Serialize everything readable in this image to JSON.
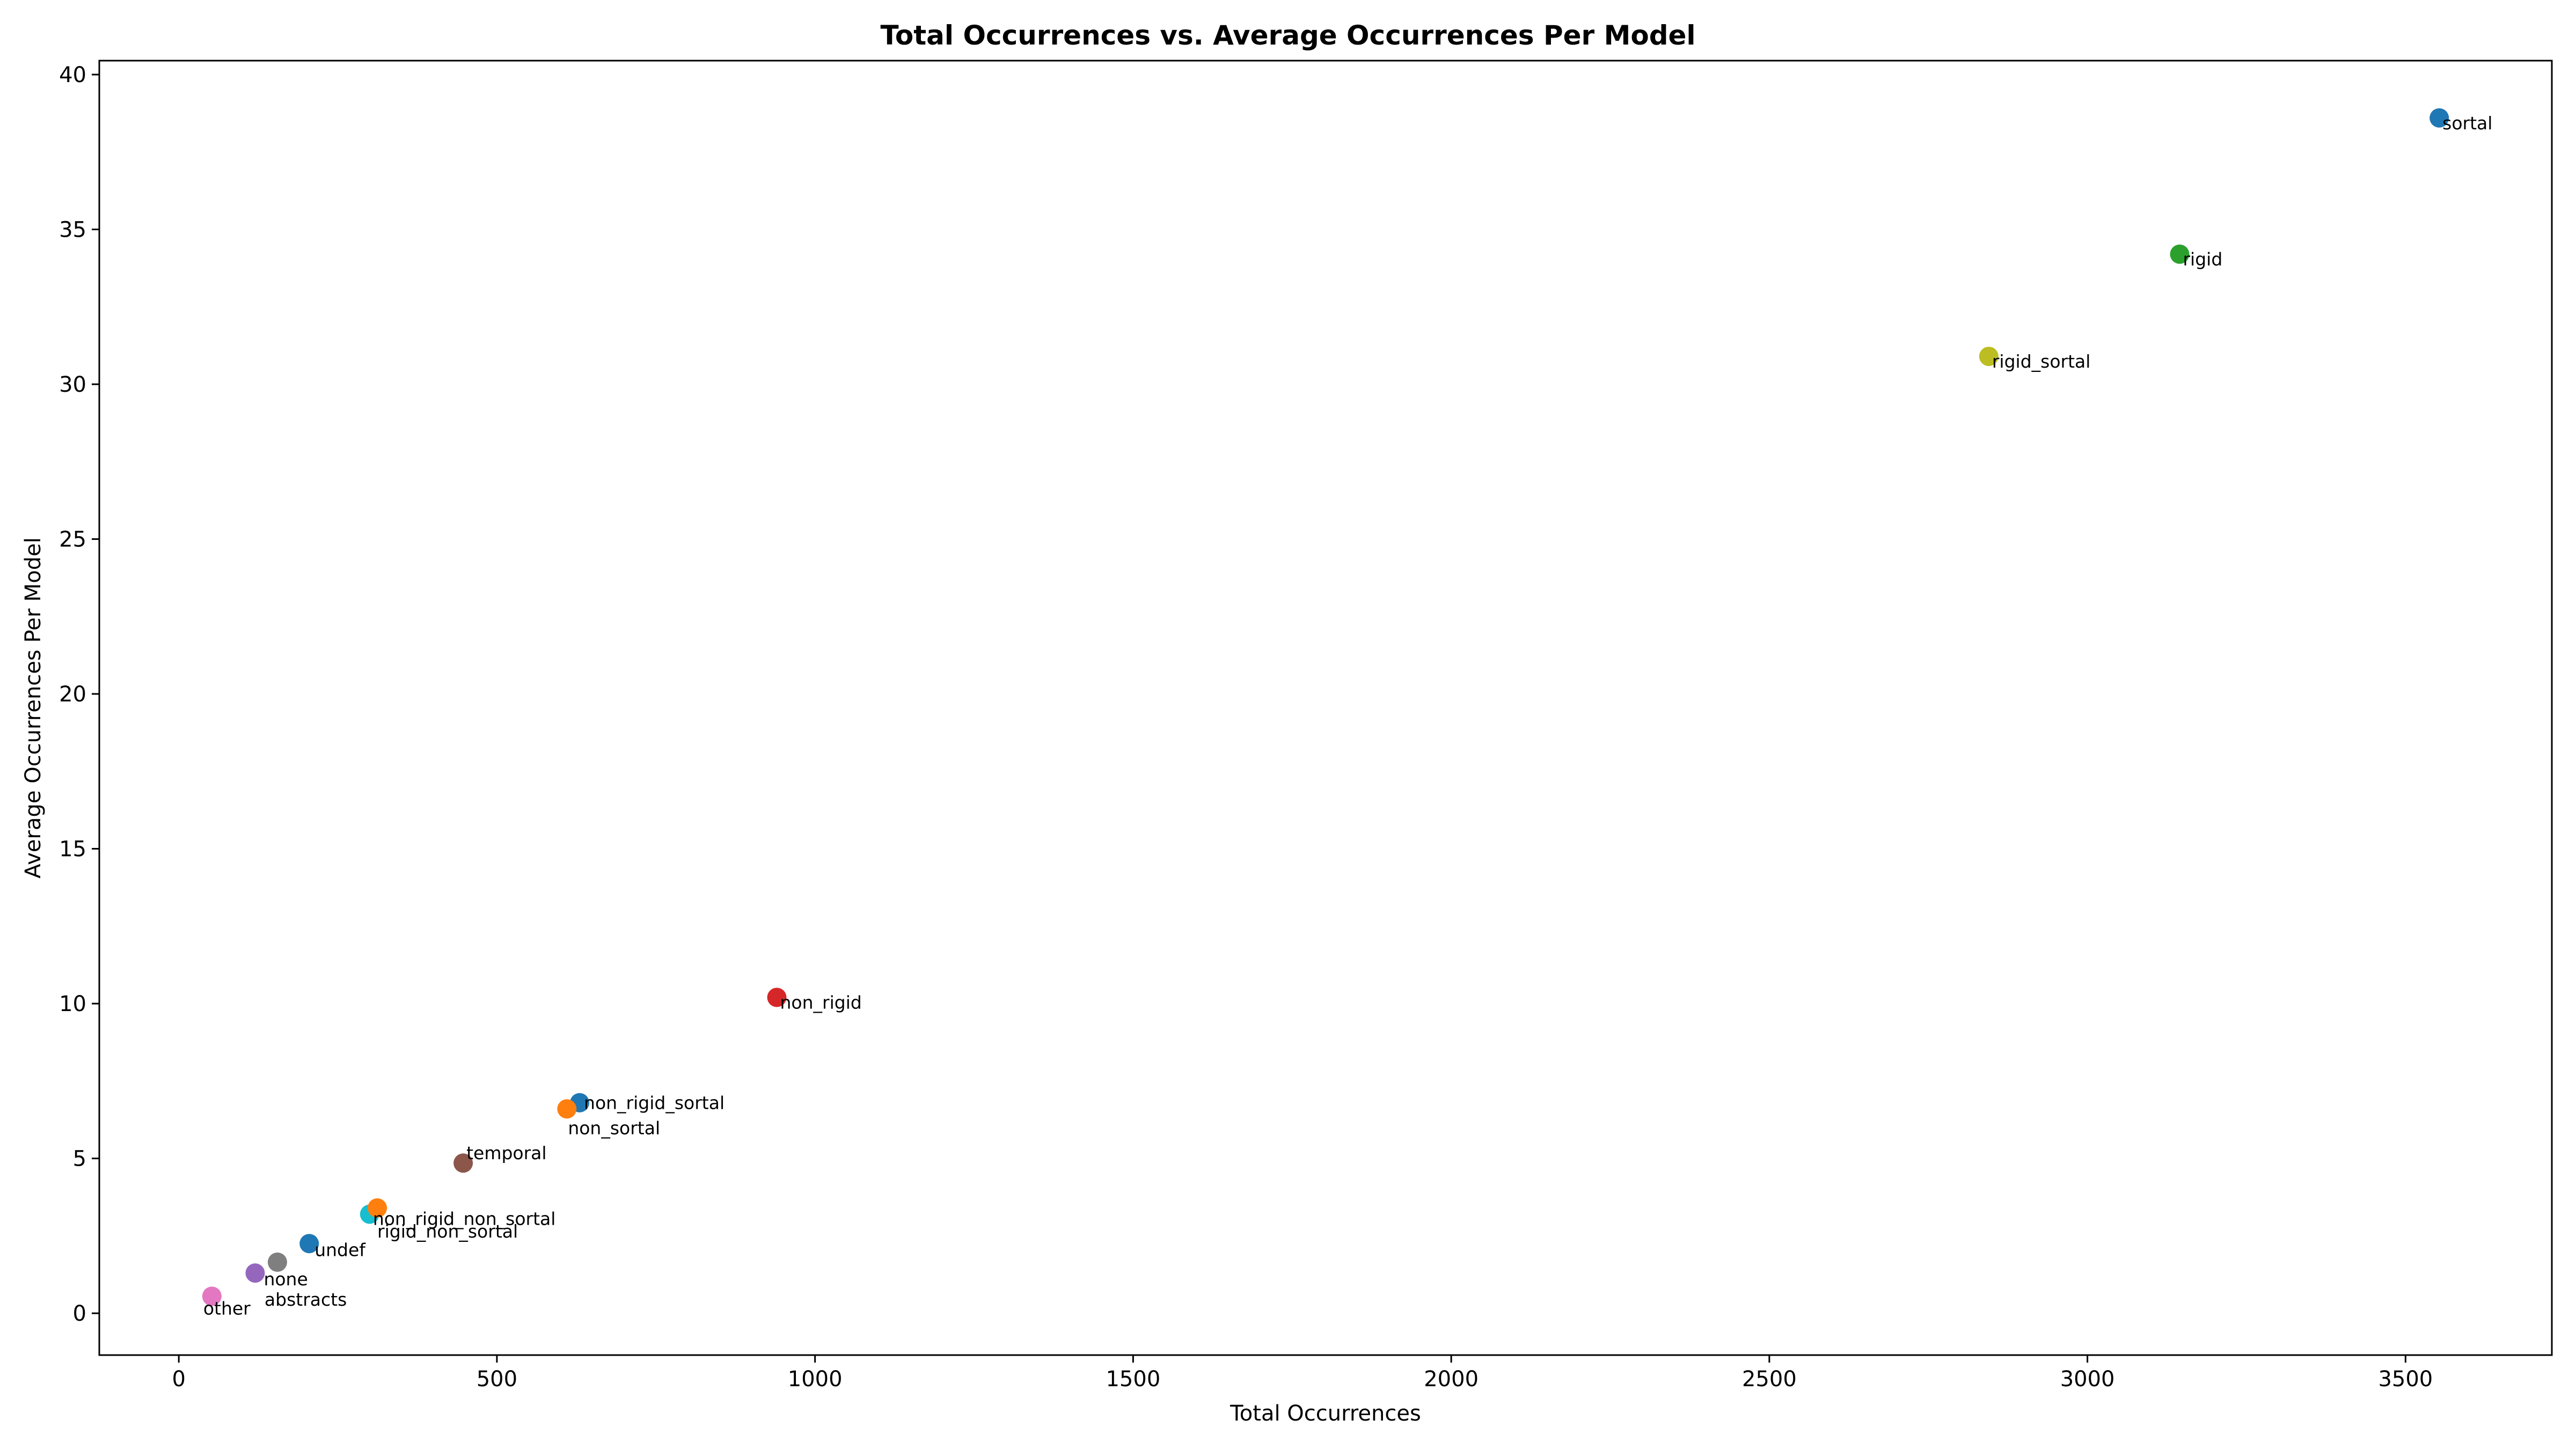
{
  "chart_data": {
    "type": "scatter",
    "title": "Total Occurrences vs. Average Occurrences Per Model",
    "xlabel": "Total Occurrences",
    "ylabel": "Average Occurrences Per Model",
    "xlim": [
      -125,
      3730
    ],
    "ylim": [
      -1.35,
      40.45
    ],
    "xticks": [
      0,
      500,
      1000,
      1500,
      2000,
      2500,
      3000,
      3500
    ],
    "yticks": [
      0,
      5,
      10,
      15,
      20,
      25,
      30,
      35,
      40
    ],
    "grid": false,
    "legend": "none",
    "points": [
      {
        "label": "sortal",
        "x": 3553,
        "y": 38.6,
        "color": "#1f77b4"
      },
      {
        "label": "rigid",
        "x": 3145,
        "y": 34.2,
        "color": "#2ca02c"
      },
      {
        "label": "rigid_sortal",
        "x": 2845,
        "y": 30.9,
        "color": "#bcbd22"
      },
      {
        "label": "non_rigid",
        "x": 940,
        "y": 10.2,
        "color": "#d62728"
      },
      {
        "label": "non_rigid_sortal",
        "x": 630,
        "y": 6.8,
        "color": "#1f77b4"
      },
      {
        "label": "non_sortal",
        "x": 610,
        "y": 6.6,
        "color": "#ff7f0e"
      },
      {
        "label": "temporal",
        "x": 447,
        "y": 4.85,
        "color": "#8c564b"
      },
      {
        "label": "non_rigid_non_sortal",
        "x": 300,
        "y": 3.2,
        "color": "#17becf"
      },
      {
        "label": "rigid_non_sortal",
        "x": 312,
        "y": 3.4,
        "color": "#ff7f0e"
      },
      {
        "label": "undef",
        "x": 205,
        "y": 2.25,
        "color": "#1f77b4"
      },
      {
        "label": "abstracts",
        "x": 155,
        "y": 1.65,
        "color": "#7f7f7f"
      },
      {
        "label": "none",
        "x": 120,
        "y": 1.3,
        "color": "#9467bd"
      },
      {
        "label": "other",
        "x": 52,
        "y": 0.55,
        "color": "#e377c2"
      }
    ]
  }
}
